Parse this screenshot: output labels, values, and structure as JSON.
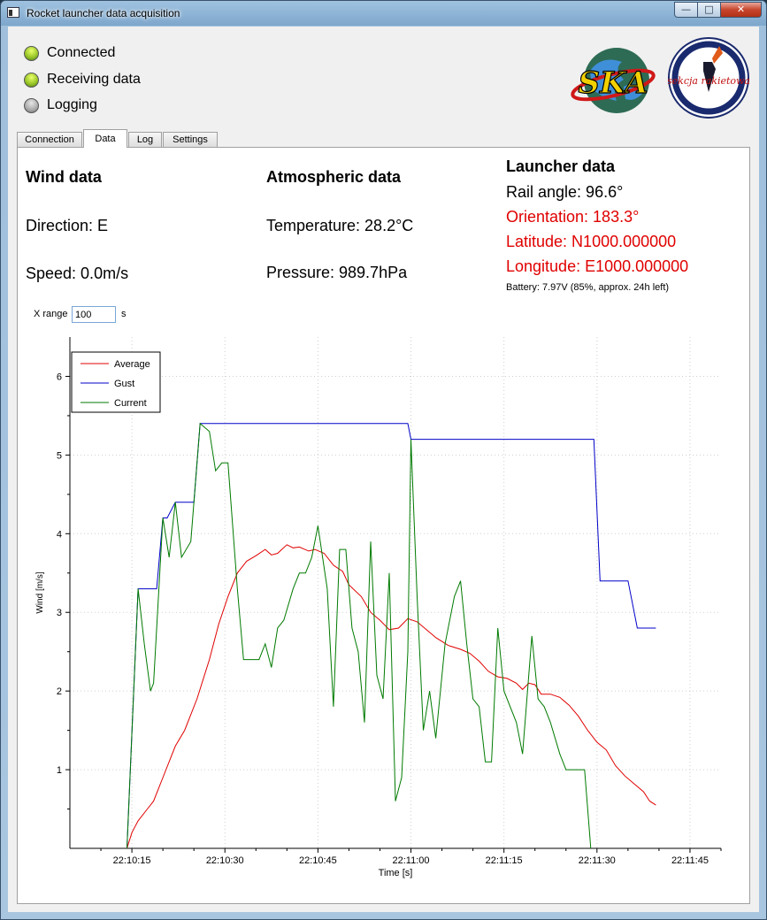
{
  "window": {
    "title": "Rocket launcher data acquisition"
  },
  "window_buttons": {
    "minimize": "—",
    "maximize": "□",
    "close": "✕"
  },
  "status": [
    {
      "label": "Connected",
      "state": "on"
    },
    {
      "label": "Receiving data",
      "state": "on"
    },
    {
      "label": "Logging",
      "state": "off"
    }
  ],
  "logos": [
    "SKA",
    "sekcja rakietowa"
  ],
  "tabs": [
    {
      "label": "Connection",
      "active": false
    },
    {
      "label": "Data",
      "active": true
    },
    {
      "label": "Log",
      "active": false
    },
    {
      "label": "Settings",
      "active": false
    }
  ],
  "wind": {
    "heading": "Wind data",
    "direction": "Direction: E",
    "speed": "Speed: 0.0m/s"
  },
  "atmos": {
    "heading": "Atmospheric data",
    "temperature": "Temperature: 28.2°C",
    "pressure": "Pressure: 989.7hPa"
  },
  "launcher": {
    "heading": "Launcher data",
    "rail_angle": "Rail angle: 96.6°",
    "orientation": "Orientation: 183.3°",
    "latitude": "Latitude: N1000.000000",
    "longitude": "Longitude: E1000.000000",
    "battery": "Battery: 7.97V (85%, approx. 24h left)"
  },
  "colors": {
    "warning": "#e00000",
    "average": "#e00000",
    "gust": "#0000c8",
    "current": "#007a00"
  },
  "xrange": {
    "label": "X range",
    "value": "100",
    "unit": "s"
  },
  "chart_data": {
    "type": "line",
    "xlabel": "Time [s]",
    "ylabel": "Wind [m/s]",
    "x_ticks": [
      "22:10:15",
      "22:10:30",
      "22:10:45",
      "22:11:00",
      "22:11:15",
      "22:11:30",
      "22:11:45"
    ],
    "x_tick_seconds": [
      15,
      30,
      45,
      60,
      75,
      90,
      105
    ],
    "y_ticks": [
      1,
      2,
      3,
      4,
      5,
      6
    ],
    "xlim": [
      5,
      110
    ],
    "ylim": [
      0,
      6.5
    ],
    "grid": true,
    "legend": "top-left",
    "series": [
      {
        "name": "Average",
        "color": "#e00000",
        "points": [
          [
            14.2,
            0
          ],
          [
            15,
            0.2
          ],
          [
            16,
            0.35
          ],
          [
            17.5,
            0.5
          ],
          [
            18.5,
            0.6
          ],
          [
            20,
            0.9
          ],
          [
            22,
            1.3
          ],
          [
            23.5,
            1.5
          ],
          [
            25.5,
            1.9
          ],
          [
            27.5,
            2.4
          ],
          [
            29,
            2.85
          ],
          [
            30.5,
            3.2
          ],
          [
            32,
            3.5
          ],
          [
            33.5,
            3.65
          ],
          [
            35,
            3.72
          ],
          [
            36.5,
            3.8
          ],
          [
            37.5,
            3.73
          ],
          [
            38.5,
            3.75
          ],
          [
            40,
            3.86
          ],
          [
            41,
            3.82
          ],
          [
            42,
            3.83
          ],
          [
            43.5,
            3.78
          ],
          [
            44.5,
            3.8
          ],
          [
            46,
            3.75
          ],
          [
            47.5,
            3.6
          ],
          [
            49,
            3.52
          ],
          [
            50,
            3.35
          ],
          [
            52,
            3.2
          ],
          [
            53.5,
            3.0
          ],
          [
            55,
            2.9
          ],
          [
            56.5,
            2.78
          ],
          [
            58,
            2.8
          ],
          [
            59.5,
            2.92
          ],
          [
            61,
            2.88
          ],
          [
            62.5,
            2.78
          ],
          [
            64,
            2.68
          ],
          [
            66,
            2.58
          ],
          [
            68,
            2.53
          ],
          [
            69.5,
            2.48
          ],
          [
            71,
            2.38
          ],
          [
            72.5,
            2.25
          ],
          [
            74,
            2.18
          ],
          [
            75.5,
            2.16
          ],
          [
            77,
            2.1
          ],
          [
            78,
            2.02
          ],
          [
            79,
            2.1
          ],
          [
            80,
            2.08
          ],
          [
            81,
            1.96
          ],
          [
            82.5,
            1.96
          ],
          [
            84,
            1.92
          ],
          [
            85.5,
            1.82
          ],
          [
            87,
            1.68
          ],
          [
            88.5,
            1.5
          ],
          [
            90,
            1.35
          ],
          [
            91.5,
            1.25
          ],
          [
            93,
            1.05
          ],
          [
            94.5,
            0.92
          ],
          [
            96,
            0.82
          ],
          [
            97.5,
            0.72
          ],
          [
            98.5,
            0.6
          ],
          [
            99.5,
            0.55
          ]
        ]
      },
      {
        "name": "Gust",
        "color": "#0000c8",
        "points": [
          [
            14.2,
            0
          ],
          [
            16,
            3.3
          ],
          [
            17.5,
            3.3
          ],
          [
            19,
            3.3
          ],
          [
            20,
            4.2
          ],
          [
            20.7,
            4.2
          ],
          [
            22,
            4.4
          ],
          [
            23.5,
            4.4
          ],
          [
            25,
            4.4
          ],
          [
            26,
            5.4
          ],
          [
            40,
            5.4
          ],
          [
            55,
            5.4
          ],
          [
            59.5,
            5.4
          ],
          [
            60,
            5.2
          ],
          [
            75,
            5.2
          ],
          [
            89.5,
            5.2
          ],
          [
            90.5,
            3.4
          ],
          [
            92,
            3.4
          ],
          [
            93.5,
            3.4
          ],
          [
            95,
            3.4
          ],
          [
            96.5,
            2.8
          ],
          [
            98,
            2.8
          ],
          [
            99.5,
            2.8
          ]
        ]
      },
      {
        "name": "Current",
        "color": "#007a00",
        "points": [
          [
            14.2,
            0
          ],
          [
            16,
            3.3
          ],
          [
            17,
            2.6
          ],
          [
            18,
            2.0
          ],
          [
            18.5,
            2.1
          ],
          [
            20,
            4.2
          ],
          [
            21,
            3.7
          ],
          [
            22,
            4.4
          ],
          [
            23,
            3.7
          ],
          [
            24.5,
            3.9
          ],
          [
            26,
            5.4
          ],
          [
            27.5,
            5.3
          ],
          [
            28.5,
            4.8
          ],
          [
            29.5,
            4.9
          ],
          [
            30.5,
            4.9
          ],
          [
            32,
            3.3
          ],
          [
            33,
            2.4
          ],
          [
            34.5,
            2.4
          ],
          [
            35.5,
            2.4
          ],
          [
            36.5,
            2.6
          ],
          [
            37.5,
            2.3
          ],
          [
            38.5,
            2.8
          ],
          [
            39.5,
            2.9
          ],
          [
            41,
            3.3
          ],
          [
            42,
            3.5
          ],
          [
            43,
            3.5
          ],
          [
            44,
            3.7
          ],
          [
            45,
            4.1
          ],
          [
            46.5,
            3.3
          ],
          [
            47.5,
            1.8
          ],
          [
            48.5,
            3.8
          ],
          [
            49.5,
            3.8
          ],
          [
            50.5,
            2.8
          ],
          [
            51.5,
            2.5
          ],
          [
            52.5,
            1.6
          ],
          [
            53.5,
            3.9
          ],
          [
            54.5,
            2.2
          ],
          [
            55.5,
            1.9
          ],
          [
            56.5,
            3.5
          ],
          [
            57.5,
            0.6
          ],
          [
            58.5,
            0.9
          ],
          [
            59.5,
            2.5
          ],
          [
            60,
            5.2
          ],
          [
            61,
            3.2
          ],
          [
            62,
            1.5
          ],
          [
            63,
            2.0
          ],
          [
            64,
            1.4
          ],
          [
            65.5,
            2.6
          ],
          [
            67,
            3.2
          ],
          [
            68,
            3.4
          ],
          [
            69,
            2.6
          ],
          [
            70,
            1.9
          ],
          [
            71,
            1.8
          ],
          [
            72,
            1.1
          ],
          [
            73,
            1.1
          ],
          [
            74,
            2.8
          ],
          [
            75,
            2.0
          ],
          [
            77,
            1.6
          ],
          [
            78,
            1.2
          ],
          [
            79.5,
            2.7
          ],
          [
            80.5,
            1.9
          ],
          [
            81.5,
            1.8
          ],
          [
            82.5,
            1.6
          ],
          [
            84,
            1.2
          ],
          [
            85,
            1.0
          ],
          [
            87,
            1.0
          ],
          [
            88,
            1.0
          ],
          [
            89,
            0
          ]
        ]
      }
    ]
  }
}
